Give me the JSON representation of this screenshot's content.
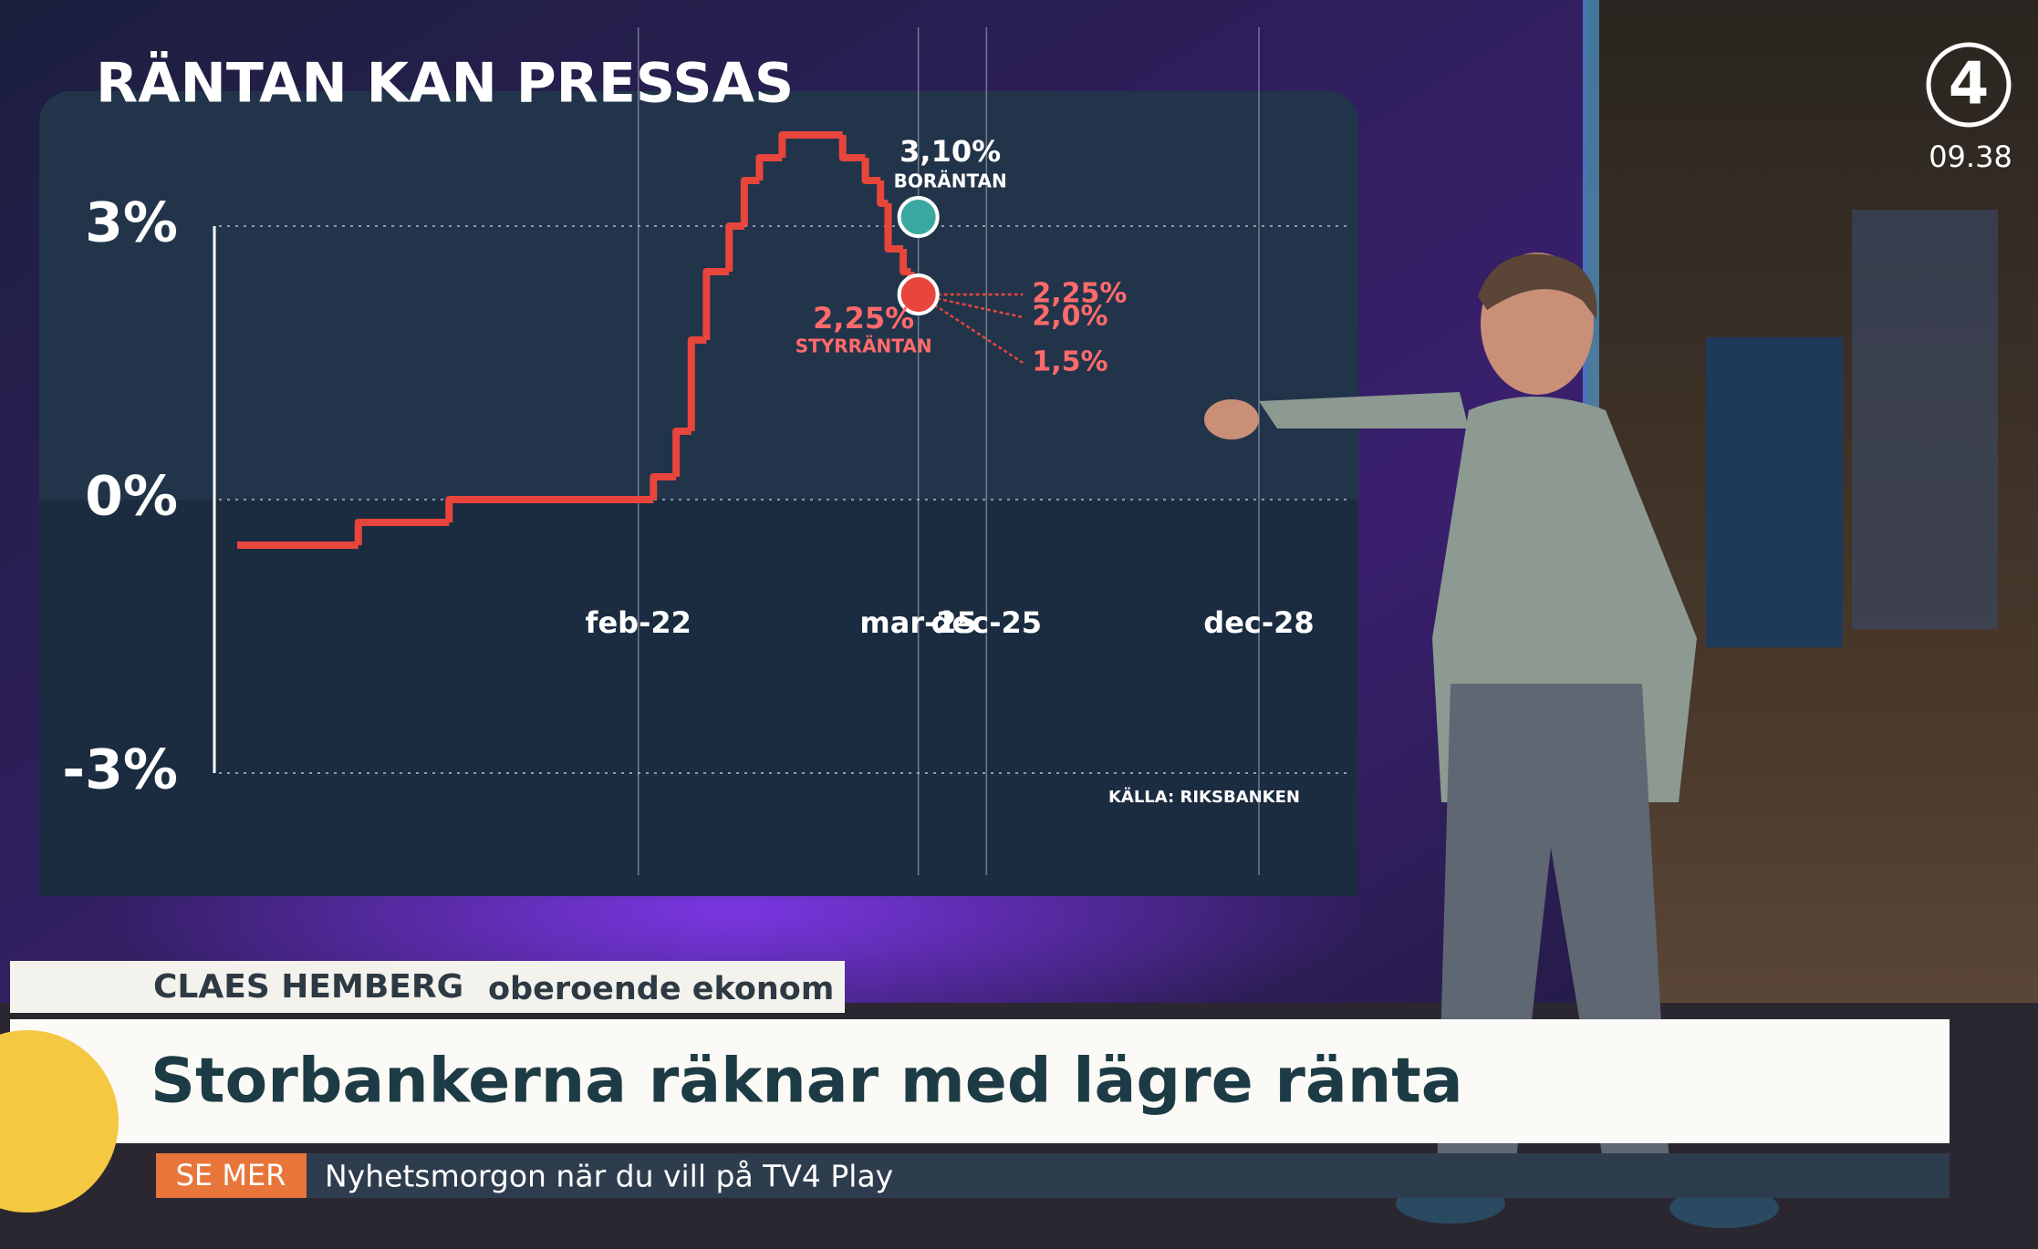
{
  "chart_data": {
    "type": "line",
    "title": "RÄNTAN KAN PRESSAS",
    "series": [
      {
        "color": "#e8453c",
        "x": [
          "sep-17",
          "jan-19",
          "jan-20",
          "apr-22",
          "jul-22",
          "sep-22",
          "nov-22",
          "feb-23",
          "apr-23",
          "jun-23",
          "sep-23",
          "maj-24",
          "aug-24",
          "okt-24",
          "nov-24",
          "jan-25",
          "feb-25"
        ],
        "values": [
          -0.5,
          -0.25,
          0,
          0.25,
          0.75,
          1.75,
          2.5,
          3,
          3.5,
          3.75,
          4,
          3.75,
          3.5,
          3.25,
          2.75,
          2.5,
          2.25
        ]
      }
    ],
    "points": [
      {
        "label": "BORÄNTAN",
        "x": "mar-25",
        "value": 3.1,
        "value_label": "3,10%",
        "color": "#3aa8a0"
      },
      {
        "label": "STYRRÄNTAN",
        "x": "mar-25",
        "value": 2.25,
        "value_label": "2,25%",
        "color": "#e8453c"
      }
    ],
    "forecast": {
      "x": "dec-25",
      "values": [
        2.25,
        2.0,
        1.5
      ],
      "value_labels": [
        "2,25%",
        "2,0%",
        "1,5%"
      ],
      "color": "#e8453c"
    },
    "xlim": [
      "sep-17",
      "dec-28"
    ],
    "xticks": [
      "feb-22",
      "mar-25",
      "dec-25",
      "dec-28"
    ],
    "ylim": [
      -3,
      4.5
    ],
    "yticks": [
      {
        "value": 3,
        "label": "3%"
      },
      {
        "value": 0,
        "label": "0%"
      },
      {
        "value": -3,
        "label": "-3%"
      }
    ],
    "grid": true,
    "source": "KÄLLA: RIKSBANKEN"
  },
  "overlay": {
    "name": "CLAES HEMBERG",
    "role": "oberoende ekonom",
    "headline": "Storbankerna räknar med lägre ränta",
    "button": "SE MER",
    "ticker": "Nyhetsmorgon när du vill på TV4 Play",
    "channel": "4",
    "time": "09.38"
  }
}
